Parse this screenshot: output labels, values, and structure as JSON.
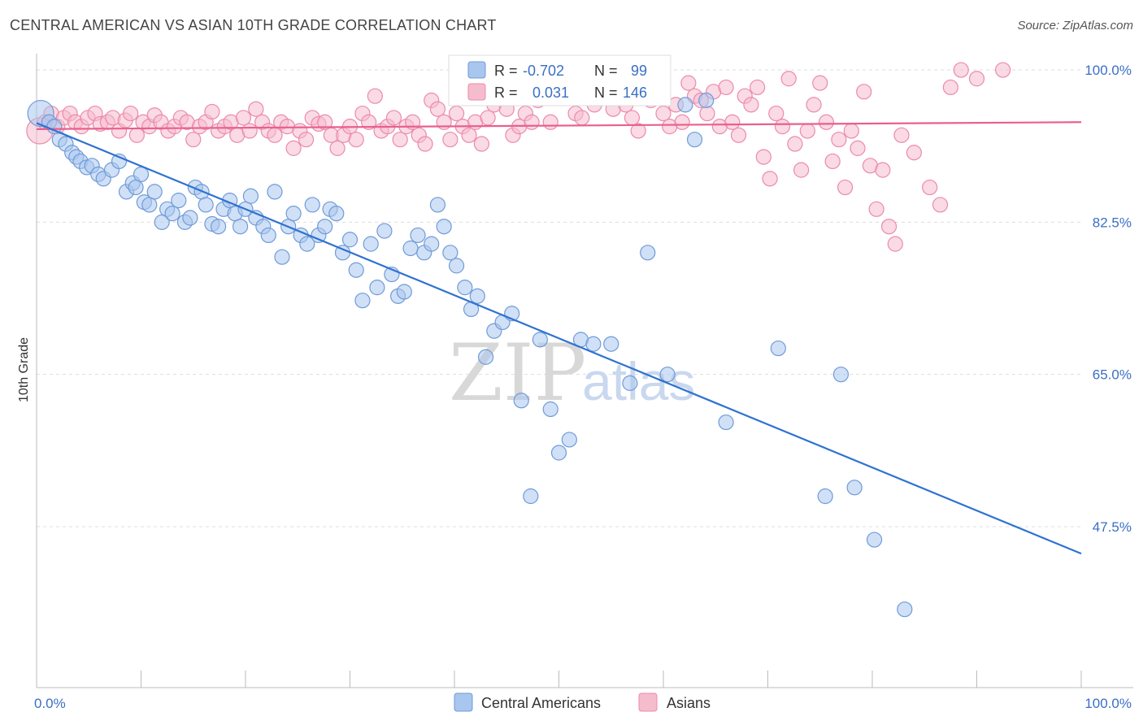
{
  "title": "CENTRAL AMERICAN VS ASIAN 10TH GRADE CORRELATION CHART",
  "source": "Source: ZipAtlas.com",
  "watermark": {
    "zip": "ZIP",
    "atlas": "atlas"
  },
  "colors": {
    "blue_fill": "#a9c6ee",
    "blue_stroke": "#6f9bd8",
    "blue_line": "#2f72d1",
    "pink_fill": "#f5bccd",
    "pink_stroke": "#ec8aaa",
    "pink_line": "#e8608e",
    "tick_text": "#3a6fc4"
  },
  "legend": {
    "rows": [
      {
        "r_label": "R =",
        "r_value": "-0.702",
        "n_label": "N =",
        "n_value": "99"
      },
      {
        "r_label": "R =",
        "r_value": "0.031",
        "n_label": "N =",
        "n_value": "146"
      }
    ]
  },
  "chart_data": {
    "type": "scatter",
    "title": "CENTRAL AMERICAN VS ASIAN 10TH GRADE CORRELATION CHART",
    "xlabel": "",
    "ylabel": "10th Grade",
    "xlim": [
      0,
      100
    ],
    "ylim": [
      29,
      101.5
    ],
    "x_tick_labels": [
      "0.0%",
      "100.0%"
    ],
    "y_ticks": [
      47.5,
      65.0,
      82.5,
      100.0
    ],
    "y_tick_labels": [
      "47.5%",
      "65.0%",
      "82.5%",
      "100.0%"
    ],
    "grid": true,
    "legend_position": "top-center",
    "series": [
      {
        "name": "Central Americans",
        "r": -0.702,
        "n": 99,
        "trend": {
          "x": [
            0,
            100
          ],
          "y": [
            93.9,
            44.4
          ]
        },
        "x": [
          0.4,
          1.2,
          1.7,
          2.2,
          2.8,
          3.4,
          3.8,
          4.2,
          4.8,
          5.3,
          5.9,
          6.4,
          7.2,
          7.9,
          8.6,
          9.2,
          9.5,
          10.0,
          10.3,
          10.8,
          11.3,
          12.0,
          12.5,
          13.0,
          13.6,
          14.2,
          14.7,
          15.2,
          15.8,
          16.2,
          16.8,
          17.4,
          17.9,
          18.5,
          19.0,
          19.5,
          20.0,
          20.5,
          21.0,
          21.7,
          22.2,
          22.8,
          23.5,
          24.1,
          24.6,
          25.3,
          25.9,
          26.4,
          27.0,
          27.6,
          28.1,
          28.7,
          29.3,
          30.0,
          30.6,
          31.2,
          32.0,
          32.6,
          33.3,
          34.0,
          34.6,
          35.2,
          35.8,
          36.5,
          37.1,
          37.8,
          38.4,
          39.0,
          39.6,
          40.2,
          41.0,
          41.6,
          42.2,
          43.0,
          43.8,
          44.6,
          45.5,
          46.4,
          47.3,
          48.2,
          49.2,
          50.0,
          51.0,
          52.1,
          53.3,
          55.0,
          56.8,
          58.5,
          60.4,
          62.1,
          63.0,
          64.1,
          66.0,
          71.0,
          75.5,
          77.0,
          78.3,
          80.2,
          83.1
        ],
        "y": [
          95.0,
          94.0,
          93.5,
          92.0,
          91.5,
          90.5,
          90.0,
          89.5,
          88.8,
          89.0,
          88.0,
          87.5,
          88.5,
          89.5,
          86.0,
          87.0,
          86.5,
          88.0,
          84.8,
          84.5,
          86.0,
          82.5,
          84.0,
          83.5,
          85.0,
          82.5,
          83.0,
          86.5,
          86.0,
          84.5,
          82.3,
          82.0,
          84.0,
          85.0,
          83.5,
          82.0,
          84.0,
          85.5,
          83.0,
          82.0,
          81.0,
          86.0,
          78.5,
          82.0,
          83.5,
          81.0,
          80.0,
          84.5,
          81.0,
          82.0,
          84.0,
          83.5,
          79.0,
          80.5,
          77.0,
          73.5,
          80.0,
          75.0,
          81.5,
          76.5,
          74.0,
          74.5,
          79.5,
          81.0,
          79.0,
          80.0,
          84.5,
          82.0,
          79.0,
          77.5,
          75.0,
          72.5,
          74.0,
          67.0,
          70.0,
          71.0,
          72.0,
          62.0,
          51.0,
          69.0,
          61.0,
          56.0,
          57.5,
          69.0,
          68.5,
          68.5,
          64.0,
          79.0,
          65.0,
          96.0,
          92.0,
          96.5,
          59.5,
          68.0,
          51.0,
          65.0,
          52.0,
          46.0,
          38.0
        ]
      },
      {
        "name": "Asians",
        "r": 0.031,
        "n": 146,
        "trend": {
          "x": [
            0,
            100
          ],
          "y": [
            93.2,
            94.0
          ]
        },
        "x": [
          0.3,
          0.8,
          1.4,
          2.0,
          2.6,
          3.2,
          3.7,
          4.3,
          4.9,
          5.6,
          6.1,
          6.8,
          7.3,
          7.9,
          8.5,
          9.0,
          9.6,
          10.2,
          10.8,
          11.3,
          11.9,
          12.6,
          13.2,
          13.8,
          14.4,
          15.0,
          15.6,
          16.2,
          16.8,
          17.4,
          18.0,
          18.6,
          19.2,
          19.8,
          20.4,
          21.0,
          21.6,
          22.2,
          22.8,
          23.4,
          24.0,
          24.6,
          25.2,
          25.8,
          26.4,
          27.0,
          27.6,
          28.2,
          28.8,
          29.4,
          30.0,
          30.6,
          31.2,
          31.8,
          32.4,
          33.0,
          33.6,
          34.2,
          34.8,
          35.4,
          36.0,
          36.6,
          37.2,
          37.8,
          38.4,
          39.0,
          39.6,
          40.2,
          40.8,
          41.4,
          42.0,
          42.6,
          43.2,
          43.8,
          44.4,
          45.0,
          45.6,
          46.2,
          46.8,
          47.4,
          48.0,
          48.6,
          49.2,
          49.8,
          50.4,
          51.0,
          51.6,
          52.2,
          52.8,
          53.4,
          54.0,
          54.6,
          55.2,
          55.8,
          56.4,
          57.0,
          57.6,
          58.2,
          58.8,
          59.4,
          60.0,
          60.6,
          61.2,
          61.8,
          62.4,
          63.0,
          63.6,
          64.2,
          64.8,
          65.4,
          66.0,
          66.6,
          67.2,
          67.8,
          68.4,
          69.0,
          69.6,
          70.2,
          70.8,
          71.4,
          72.0,
          72.6,
          73.2,
          73.8,
          74.4,
          75.0,
          75.6,
          76.2,
          76.8,
          77.4,
          78.0,
          78.6,
          79.2,
          79.8,
          80.4,
          81.0,
          81.6,
          82.2,
          82.8,
          84.0,
          85.5,
          86.5,
          87.5,
          88.5,
          90.0,
          92.5
        ],
        "y": [
          93.0,
          94.0,
          95.0,
          93.5,
          94.5,
          95.0,
          94.0,
          93.5,
          94.5,
          95.0,
          93.8,
          94.0,
          94.5,
          93.0,
          94.2,
          95.0,
          92.5,
          94.0,
          93.5,
          94.8,
          94.0,
          93.0,
          93.5,
          94.5,
          94.0,
          92.0,
          93.5,
          94.0,
          95.2,
          93.0,
          93.5,
          94.0,
          92.5,
          94.5,
          93.0,
          95.5,
          94.0,
          93.0,
          92.5,
          94.0,
          93.5,
          91.0,
          93.0,
          92.0,
          94.5,
          93.8,
          94.0,
          92.5,
          91.0,
          92.5,
          93.5,
          92.0,
          95.0,
          94.0,
          97.0,
          93.0,
          93.5,
          94.5,
          92.0,
          93.5,
          94.0,
          92.5,
          91.5,
          96.5,
          95.5,
          94.0,
          92.0,
          95.0,
          93.5,
          92.5,
          94.0,
          91.5,
          94.5,
          96.0,
          98.0,
          95.5,
          92.5,
          93.5,
          95.0,
          94.0,
          96.5,
          97.0,
          94.0,
          98.5,
          99.0,
          97.5,
          95.0,
          94.5,
          97.0,
          96.0,
          98.0,
          97.5,
          95.5,
          97.0,
          96.0,
          94.5,
          93.0,
          98.0,
          96.5,
          97.5,
          95.0,
          93.5,
          96.0,
          94.0,
          98.5,
          97.0,
          96.5,
          95.0,
          97.5,
          93.5,
          98.0,
          94.0,
          92.5,
          97.0,
          96.0,
          98.0,
          90.0,
          87.5,
          95.0,
          93.5,
          99.0,
          91.5,
          88.5,
          93.0,
          96.0,
          98.5,
          94.0,
          89.5,
          92.0,
          86.5,
          93.0,
          91.0,
          97.5,
          89.0,
          84.0,
          88.5,
          82.0,
          80.0,
          92.5,
          90.5,
          86.5,
          84.5,
          98.0,
          100.0,
          99.0,
          100.0
        ]
      }
    ]
  },
  "bottom_legend": [
    "Central Americans",
    "Asians"
  ]
}
